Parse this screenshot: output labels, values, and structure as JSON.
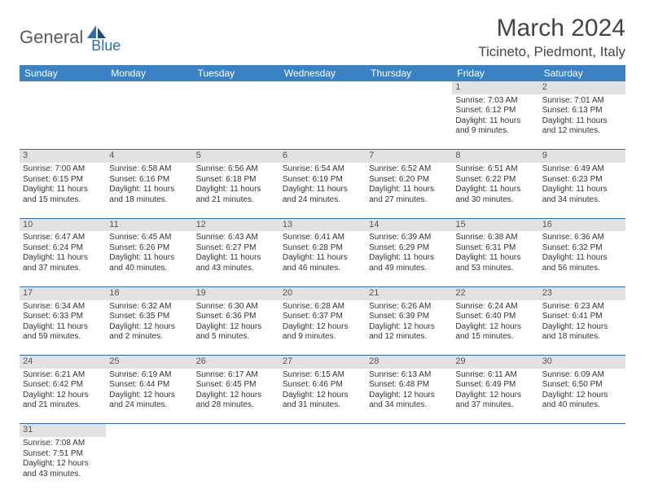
{
  "colors": {
    "header_bg": "#3a82c4",
    "header_text": "#ffffff",
    "daynum_bg": "#e2e2e2",
    "border": "#2d6fb5",
    "text": "#333333",
    "logo_gray": "#5a5a5a",
    "logo_blue": "#2d6fb5"
  },
  "logo": {
    "part1": "General",
    "part2": "Blue"
  },
  "title": "March 2024",
  "location": "Ticineto, Piedmont, Italy",
  "day_headers": [
    "Sunday",
    "Monday",
    "Tuesday",
    "Wednesday",
    "Thursday",
    "Friday",
    "Saturday"
  ],
  "weeks": [
    {
      "nums": [
        "",
        "",
        "",
        "",
        "",
        "1",
        "2"
      ],
      "cells": [
        null,
        null,
        null,
        null,
        null,
        {
          "sunrise": "Sunrise: 7:03 AM",
          "sunset": "Sunset: 6:12 PM",
          "day1": "Daylight: 11 hours",
          "day2": "and 9 minutes."
        },
        {
          "sunrise": "Sunrise: 7:01 AM",
          "sunset": "Sunset: 6:13 PM",
          "day1": "Daylight: 11 hours",
          "day2": "and 12 minutes."
        }
      ]
    },
    {
      "nums": [
        "3",
        "4",
        "5",
        "6",
        "7",
        "8",
        "9"
      ],
      "cells": [
        {
          "sunrise": "Sunrise: 7:00 AM",
          "sunset": "Sunset: 6:15 PM",
          "day1": "Daylight: 11 hours",
          "day2": "and 15 minutes."
        },
        {
          "sunrise": "Sunrise: 6:58 AM",
          "sunset": "Sunset: 6:16 PM",
          "day1": "Daylight: 11 hours",
          "day2": "and 18 minutes."
        },
        {
          "sunrise": "Sunrise: 6:56 AM",
          "sunset": "Sunset: 6:18 PM",
          "day1": "Daylight: 11 hours",
          "day2": "and 21 minutes."
        },
        {
          "sunrise": "Sunrise: 6:54 AM",
          "sunset": "Sunset: 6:19 PM",
          "day1": "Daylight: 11 hours",
          "day2": "and 24 minutes."
        },
        {
          "sunrise": "Sunrise: 6:52 AM",
          "sunset": "Sunset: 6:20 PM",
          "day1": "Daylight: 11 hours",
          "day2": "and 27 minutes."
        },
        {
          "sunrise": "Sunrise: 6:51 AM",
          "sunset": "Sunset: 6:22 PM",
          "day1": "Daylight: 11 hours",
          "day2": "and 30 minutes."
        },
        {
          "sunrise": "Sunrise: 6:49 AM",
          "sunset": "Sunset: 6:23 PM",
          "day1": "Daylight: 11 hours",
          "day2": "and 34 minutes."
        }
      ]
    },
    {
      "nums": [
        "10",
        "11",
        "12",
        "13",
        "14",
        "15",
        "16"
      ],
      "cells": [
        {
          "sunrise": "Sunrise: 6:47 AM",
          "sunset": "Sunset: 6:24 PM",
          "day1": "Daylight: 11 hours",
          "day2": "and 37 minutes."
        },
        {
          "sunrise": "Sunrise: 6:45 AM",
          "sunset": "Sunset: 6:26 PM",
          "day1": "Daylight: 11 hours",
          "day2": "and 40 minutes."
        },
        {
          "sunrise": "Sunrise: 6:43 AM",
          "sunset": "Sunset: 6:27 PM",
          "day1": "Daylight: 11 hours",
          "day2": "and 43 minutes."
        },
        {
          "sunrise": "Sunrise: 6:41 AM",
          "sunset": "Sunset: 6:28 PM",
          "day1": "Daylight: 11 hours",
          "day2": "and 46 minutes."
        },
        {
          "sunrise": "Sunrise: 6:39 AM",
          "sunset": "Sunset: 6:29 PM",
          "day1": "Daylight: 11 hours",
          "day2": "and 49 minutes."
        },
        {
          "sunrise": "Sunrise: 6:38 AM",
          "sunset": "Sunset: 6:31 PM",
          "day1": "Daylight: 11 hours",
          "day2": "and 53 minutes."
        },
        {
          "sunrise": "Sunrise: 6:36 AM",
          "sunset": "Sunset: 6:32 PM",
          "day1": "Daylight: 11 hours",
          "day2": "and 56 minutes."
        }
      ]
    },
    {
      "nums": [
        "17",
        "18",
        "19",
        "20",
        "21",
        "22",
        "23"
      ],
      "cells": [
        {
          "sunrise": "Sunrise: 6:34 AM",
          "sunset": "Sunset: 6:33 PM",
          "day1": "Daylight: 11 hours",
          "day2": "and 59 minutes."
        },
        {
          "sunrise": "Sunrise: 6:32 AM",
          "sunset": "Sunset: 6:35 PM",
          "day1": "Daylight: 12 hours",
          "day2": "and 2 minutes."
        },
        {
          "sunrise": "Sunrise: 6:30 AM",
          "sunset": "Sunset: 6:36 PM",
          "day1": "Daylight: 12 hours",
          "day2": "and 5 minutes."
        },
        {
          "sunrise": "Sunrise: 6:28 AM",
          "sunset": "Sunset: 6:37 PM",
          "day1": "Daylight: 12 hours",
          "day2": "and 9 minutes."
        },
        {
          "sunrise": "Sunrise: 6:26 AM",
          "sunset": "Sunset: 6:39 PM",
          "day1": "Daylight: 12 hours",
          "day2": "and 12 minutes."
        },
        {
          "sunrise": "Sunrise: 6:24 AM",
          "sunset": "Sunset: 6:40 PM",
          "day1": "Daylight: 12 hours",
          "day2": "and 15 minutes."
        },
        {
          "sunrise": "Sunrise: 6:23 AM",
          "sunset": "Sunset: 6:41 PM",
          "day1": "Daylight: 12 hours",
          "day2": "and 18 minutes."
        }
      ]
    },
    {
      "nums": [
        "24",
        "25",
        "26",
        "27",
        "28",
        "29",
        "30"
      ],
      "cells": [
        {
          "sunrise": "Sunrise: 6:21 AM",
          "sunset": "Sunset: 6:42 PM",
          "day1": "Daylight: 12 hours",
          "day2": "and 21 minutes."
        },
        {
          "sunrise": "Sunrise: 6:19 AM",
          "sunset": "Sunset: 6:44 PM",
          "day1": "Daylight: 12 hours",
          "day2": "and 24 minutes."
        },
        {
          "sunrise": "Sunrise: 6:17 AM",
          "sunset": "Sunset: 6:45 PM",
          "day1": "Daylight: 12 hours",
          "day2": "and 28 minutes."
        },
        {
          "sunrise": "Sunrise: 6:15 AM",
          "sunset": "Sunset: 6:46 PM",
          "day1": "Daylight: 12 hours",
          "day2": "and 31 minutes."
        },
        {
          "sunrise": "Sunrise: 6:13 AM",
          "sunset": "Sunset: 6:48 PM",
          "day1": "Daylight: 12 hours",
          "day2": "and 34 minutes."
        },
        {
          "sunrise": "Sunrise: 6:11 AM",
          "sunset": "Sunset: 6:49 PM",
          "day1": "Daylight: 12 hours",
          "day2": "and 37 minutes."
        },
        {
          "sunrise": "Sunrise: 6:09 AM",
          "sunset": "Sunset: 6:50 PM",
          "day1": "Daylight: 12 hours",
          "day2": "and 40 minutes."
        }
      ]
    },
    {
      "nums": [
        "31",
        "",
        "",
        "",
        "",
        "",
        ""
      ],
      "cells": [
        {
          "sunrise": "Sunrise: 7:08 AM",
          "sunset": "Sunset: 7:51 PM",
          "day1": "Daylight: 12 hours",
          "day2": "and 43 minutes."
        },
        null,
        null,
        null,
        null,
        null,
        null
      ]
    }
  ]
}
